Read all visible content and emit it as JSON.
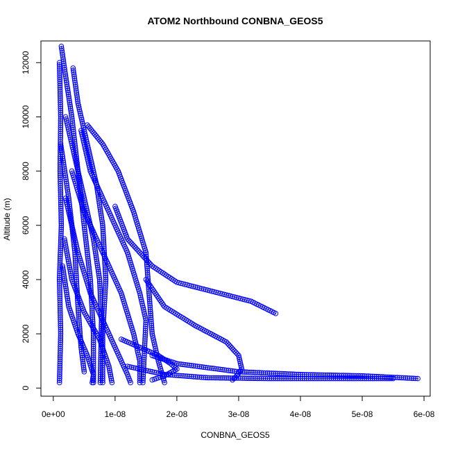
{
  "chart_data": {
    "type": "scatter",
    "title": "ATOM2 Northbound CONBNA_GEOS5",
    "xlabel": "CONBNA_GEOS5",
    "ylabel": "Altitude (m)",
    "xlim": [
      -2e-09,
      6.1e-08
    ],
    "ylim": [
      -300,
      12800
    ],
    "x_ticks": [
      0,
      1e-08,
      2e-08,
      3e-08,
      4e-08,
      5e-08,
      6e-08
    ],
    "x_tick_labels": [
      "0e+00",
      "1e-08",
      "2e-08",
      "3e-08",
      "4e-08",
      "5e-08",
      "6e-08"
    ],
    "y_ticks": [
      0,
      2000,
      4000,
      6000,
      8000,
      10000,
      12000
    ],
    "y_tick_labels": [
      "0",
      "2000",
      "4000",
      "6000",
      "8000",
      "10000",
      "12000"
    ],
    "grid": false,
    "marker": "open-circle",
    "color": "#0000ff",
    "series": [
      {
        "values": [
          [
            1e-09,
            200
          ],
          [
            1.2e-09,
            2000
          ],
          [
            1e-09,
            4000
          ],
          [
            1.3e-09,
            6000
          ],
          [
            1.1e-09,
            8000
          ],
          [
            1.2e-09,
            10000
          ],
          [
            1e-09,
            12000
          ]
        ]
      },
      {
        "values": [
          [
            1.3e-09,
            12600
          ],
          [
            2e-09,
            11500
          ],
          [
            3e-09,
            10000
          ],
          [
            4e-09,
            8000
          ],
          [
            5e-09,
            6000
          ],
          [
            6e-09,
            4000
          ],
          [
            6.5e-09,
            2000
          ],
          [
            6.5e-09,
            200
          ]
        ]
      },
      {
        "values": [
          [
            3.2e-09,
            11800
          ],
          [
            4e-09,
            10500
          ],
          [
            5.5e-09,
            9000
          ],
          [
            7e-09,
            7500
          ],
          [
            8e-09,
            6000
          ],
          [
            8.5e-09,
            4000
          ],
          [
            8e-09,
            2000
          ],
          [
            8e-09,
            200
          ]
        ]
      },
      {
        "values": [
          [
            5.5e-09,
            9700
          ],
          [
            8e-09,
            9000
          ],
          [
            1.05e-08,
            8000
          ],
          [
            1.3e-08,
            6500
          ],
          [
            1.5e-08,
            5000
          ],
          [
            1.55e-08,
            3500
          ],
          [
            1.6e-08,
            2000
          ],
          [
            1.7e-08,
            1000
          ],
          [
            1.8e-08,
            200
          ]
        ]
      },
      {
        "values": [
          [
            4.5e-09,
            9500
          ],
          [
            6e-09,
            8000
          ],
          [
            8e-09,
            7000
          ],
          [
            1e-08,
            6000
          ],
          [
            1.2e-08,
            5000
          ],
          [
            1.4e-08,
            3500
          ],
          [
            1.5e-08,
            2500
          ],
          [
            1.45e-08,
            200
          ]
        ]
      },
      {
        "values": [
          [
            3e-09,
            8000
          ],
          [
            5e-09,
            6500
          ],
          [
            8e-09,
            5000
          ],
          [
            1.1e-08,
            3500
          ],
          [
            1.3e-08,
            2000
          ],
          [
            1.4e-08,
            1000
          ],
          [
            1.4e-08,
            200
          ]
        ]
      },
      {
        "values": [
          [
            2e-09,
            7000
          ],
          [
            4e-09,
            5000
          ],
          [
            6e-09,
            3500
          ],
          [
            8e-09,
            2500
          ],
          [
            1e-08,
            1500
          ],
          [
            1.2e-08,
            500
          ],
          [
            1.25e-08,
            200
          ]
        ]
      },
      {
        "values": [
          [
            1.8e-09,
            5500
          ],
          [
            3e-09,
            4000
          ],
          [
            5e-09,
            2800
          ],
          [
            7.5e-09,
            1800
          ],
          [
            9e-09,
            800
          ],
          [
            9.5e-09,
            200
          ]
        ]
      },
      {
        "values": [
          [
            1.5e-09,
            4500
          ],
          [
            2.5e-09,
            3000
          ],
          [
            4e-09,
            2000
          ],
          [
            5.5e-09,
            1200
          ],
          [
            6.5e-09,
            500
          ],
          [
            6.3e-09,
            200
          ]
        ]
      },
      {
        "values": [
          [
            2e-09,
            10000
          ],
          [
            3.5e-09,
            8500
          ],
          [
            5e-09,
            7000
          ],
          [
            6.5e-09,
            5500
          ],
          [
            7.5e-09,
            4000
          ],
          [
            7.8e-09,
            2500
          ],
          [
            7.6e-09,
            200
          ]
        ]
      },
      {
        "values": [
          [
            1.2e-09,
            9000
          ],
          [
            2.5e-09,
            7000
          ],
          [
            3.5e-09,
            5000
          ],
          [
            4e-09,
            3000
          ],
          [
            4.5e-09,
            1500
          ],
          [
            5e-09,
            600
          ]
        ]
      },
      {
        "values": [
          [
            1e-08,
            6700
          ],
          [
            1.2e-08,
            5500
          ],
          [
            1.6e-08,
            4500
          ],
          [
            2e-08,
            3900
          ],
          [
            2.6e-08,
            3550
          ],
          [
            3.2e-08,
            3200
          ],
          [
            3.6e-08,
            2750
          ]
        ]
      },
      {
        "values": [
          [
            1.5e-08,
            4000
          ],
          [
            1.8e-08,
            3000
          ],
          [
            2.3e-08,
            2300
          ],
          [
            2.8e-08,
            1700
          ],
          [
            3e-08,
            1200
          ],
          [
            3.05e-08,
            700
          ],
          [
            2.95e-08,
            400
          ],
          [
            2.9e-08,
            300
          ]
        ]
      },
      {
        "values": [
          [
            1.6e-08,
            1200
          ],
          [
            2e-08,
            900
          ],
          [
            3e-08,
            600
          ],
          [
            4e-08,
            500
          ],
          [
            5e-08,
            450
          ],
          [
            5.9e-08,
            350
          ]
        ]
      },
      {
        "values": [
          [
            1.2e-08,
            800
          ],
          [
            1.8e-08,
            500
          ],
          [
            2.5e-08,
            380
          ],
          [
            3.5e-08,
            350
          ],
          [
            4.5e-08,
            350
          ],
          [
            5.5e-08,
            350
          ]
        ]
      },
      {
        "values": [
          [
            1.1e-08,
            1800
          ],
          [
            1.4e-08,
            1500
          ],
          [
            1.7e-08,
            1200
          ],
          [
            1.9e-08,
            900
          ],
          [
            2e-08,
            700
          ],
          [
            1.8e-08,
            450
          ],
          [
            1.6e-08,
            300
          ]
        ]
      }
    ]
  }
}
